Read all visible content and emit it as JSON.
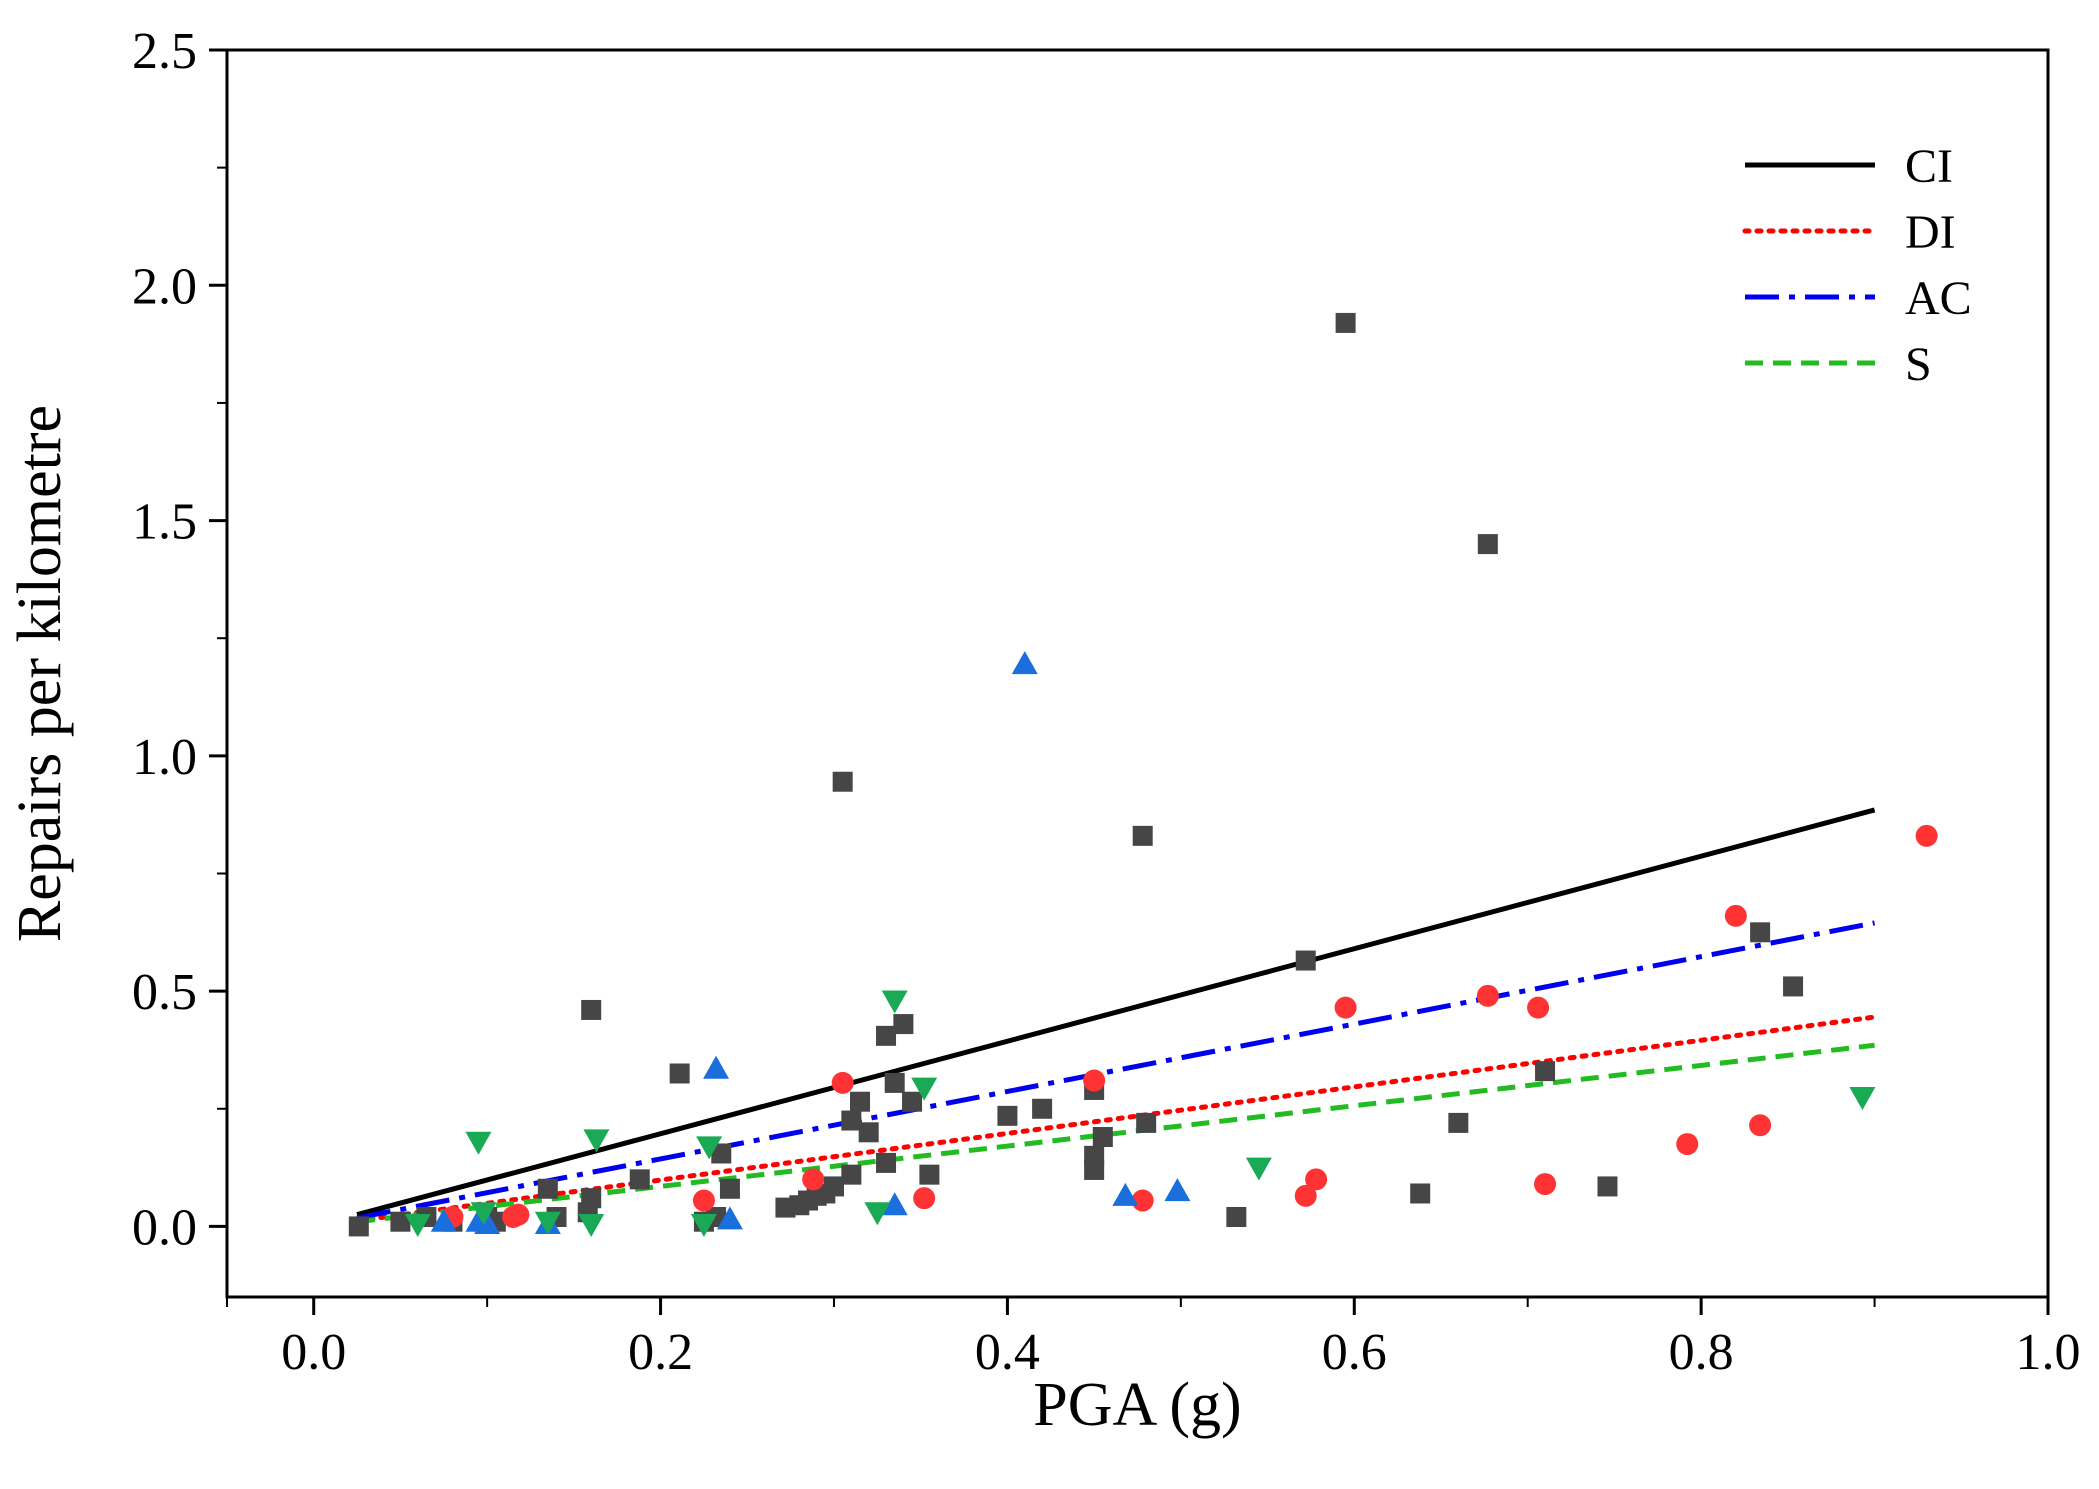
{
  "chart_data": {
    "type": "scatter",
    "xlabel": "PGA (g)",
    "ylabel": "Repairs per kilometre",
    "xlim": [
      -0.05,
      1.0
    ],
    "ylim": [
      -0.15,
      2.5
    ],
    "xticks": [
      "0.0",
      "0.2",
      "0.4",
      "0.6",
      "0.8",
      "1.0"
    ],
    "xtick_values": [
      0.0,
      0.2,
      0.4,
      0.6,
      0.8,
      1.0
    ],
    "yticks": [
      "0.0",
      "0.5",
      "1.0",
      "1.5",
      "2.0",
      "2.5"
    ],
    "ytick_values": [
      0.0,
      0.5,
      1.0,
      1.5,
      2.0,
      2.5
    ],
    "grid": false,
    "legend_position": "top-right",
    "lines": [
      {
        "name": "CI",
        "color": "#000000",
        "style": "solid",
        "x": [
          0.025,
          0.9
        ],
        "y": [
          0.025,
          0.885
        ]
      },
      {
        "name": "DI",
        "color": "#ff0000",
        "style": "dotted",
        "x": [
          0.025,
          0.9
        ],
        "y": [
          0.012,
          0.445
        ]
      },
      {
        "name": "AC",
        "color": "#0000ee",
        "style": "dashdot",
        "x": [
          0.025,
          0.9
        ],
        "y": [
          0.018,
          0.645
        ]
      },
      {
        "name": "S",
        "color": "#22bb22",
        "style": "dashed",
        "x": [
          0.025,
          0.9
        ],
        "y": [
          0.01,
          0.385
        ]
      }
    ],
    "scatter": [
      {
        "group": "CI",
        "marker": "square",
        "color": "#464646",
        "points": [
          [
            0.026,
            0.0
          ],
          [
            0.05,
            0.01
          ],
          [
            0.065,
            0.02
          ],
          [
            0.08,
            0.01
          ],
          [
            0.1,
            0.02
          ],
          [
            0.105,
            0.01
          ],
          [
            0.135,
            0.08
          ],
          [
            0.14,
            0.02
          ],
          [
            0.158,
            0.03
          ],
          [
            0.16,
            0.06
          ],
          [
            0.16,
            0.46
          ],
          [
            0.188,
            0.1
          ],
          [
            0.211,
            0.325
          ],
          [
            0.225,
            0.01
          ],
          [
            0.232,
            0.02
          ],
          [
            0.235,
            0.155
          ],
          [
            0.24,
            0.08
          ],
          [
            0.272,
            0.04
          ],
          [
            0.28,
            0.045
          ],
          [
            0.285,
            0.055
          ],
          [
            0.29,
            0.065
          ],
          [
            0.295,
            0.07
          ],
          [
            0.3,
            0.085
          ],
          [
            0.305,
            0.945
          ],
          [
            0.31,
            0.11
          ],
          [
            0.31,
            0.225
          ],
          [
            0.315,
            0.265
          ],
          [
            0.32,
            0.2
          ],
          [
            0.33,
            0.135
          ],
          [
            0.33,
            0.405
          ],
          [
            0.335,
            0.305
          ],
          [
            0.34,
            0.43
          ],
          [
            0.345,
            0.265
          ],
          [
            0.355,
            0.11
          ],
          [
            0.4,
            0.235
          ],
          [
            0.42,
            0.25
          ],
          [
            0.45,
            0.12
          ],
          [
            0.45,
            0.15
          ],
          [
            0.45,
            0.29
          ],
          [
            0.455,
            0.19
          ],
          [
            0.478,
            0.83
          ],
          [
            0.48,
            0.22
          ],
          [
            0.532,
            0.02
          ],
          [
            0.572,
            0.565
          ],
          [
            0.595,
            1.92
          ],
          [
            0.638,
            0.07
          ],
          [
            0.66,
            0.22
          ],
          [
            0.677,
            1.45
          ],
          [
            0.71,
            0.33
          ],
          [
            0.746,
            0.085
          ],
          [
            0.834,
            0.625
          ],
          [
            0.853,
            0.51
          ]
        ]
      },
      {
        "group": "DI",
        "marker": "circle",
        "color": "#ff3333",
        "points": [
          [
            0.08,
            0.02
          ],
          [
            0.115,
            0.02
          ],
          [
            0.118,
            0.025
          ],
          [
            0.225,
            0.055
          ],
          [
            0.288,
            0.1
          ],
          [
            0.305,
            0.305
          ],
          [
            0.352,
            0.06
          ],
          [
            0.45,
            0.31
          ],
          [
            0.478,
            0.055
          ],
          [
            0.572,
            0.065
          ],
          [
            0.578,
            0.1
          ],
          [
            0.595,
            0.465
          ],
          [
            0.677,
            0.49
          ],
          [
            0.706,
            0.465
          ],
          [
            0.71,
            0.09
          ],
          [
            0.792,
            0.175
          ],
          [
            0.82,
            0.66
          ],
          [
            0.834,
            0.215
          ],
          [
            0.93,
            0.83
          ]
        ]
      },
      {
        "group": "AC",
        "marker": "triangle-up",
        "color": "#1a6fdd",
        "points": [
          [
            0.075,
            0.01
          ],
          [
            0.095,
            0.01
          ],
          [
            0.1,
            0.005
          ],
          [
            0.135,
            0.005
          ],
          [
            0.232,
            0.335
          ],
          [
            0.24,
            0.015
          ],
          [
            0.335,
            0.045
          ],
          [
            0.41,
            1.195
          ],
          [
            0.468,
            0.065
          ],
          [
            0.498,
            0.075
          ]
        ]
      },
      {
        "group": "S",
        "marker": "triangle-down",
        "color": "#1aaa55",
        "points": [
          [
            0.06,
            0.005
          ],
          [
            0.095,
            0.18
          ],
          [
            0.098,
            0.03
          ],
          [
            0.135,
            0.01
          ],
          [
            0.16,
            0.005
          ],
          [
            0.163,
            0.185
          ],
          [
            0.225,
            0.005
          ],
          [
            0.228,
            0.17
          ],
          [
            0.325,
            0.03
          ],
          [
            0.335,
            0.48
          ],
          [
            0.352,
            0.295
          ],
          [
            0.545,
            0.125
          ],
          [
            0.893,
            0.275
          ]
        ]
      }
    ]
  }
}
